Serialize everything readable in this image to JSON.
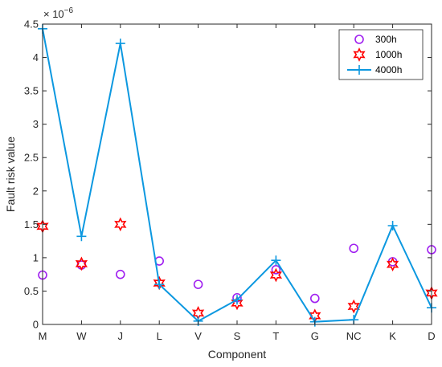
{
  "chart_data": {
    "type": "scatter",
    "xlabel": "Component",
    "ylabel": "Fault risk value",
    "y_exponent_label": "× 10",
    "y_exponent_power": "−6",
    "categories": [
      "M",
      "W",
      "J",
      "L",
      "V",
      "S",
      "T",
      "G",
      "NC",
      "K",
      "D"
    ],
    "ylim": [
      0,
      4.5
    ],
    "yticks": [
      "0",
      "0.5",
      "1",
      "1.5",
      "2",
      "2.5",
      "3",
      "3.5",
      "4",
      "4.5"
    ],
    "legend_position": "top-right",
    "series": [
      {
        "name": "300h",
        "marker": "circle",
        "line": false,
        "color": "#a020f0",
        "values": [
          0.74,
          0.89,
          0.75,
          0.95,
          0.6,
          0.4,
          0.82,
          0.39,
          1.14,
          0.94,
          1.12
        ]
      },
      {
        "name": "1000h",
        "marker": "hexagram",
        "line": false,
        "color": "#ff0000",
        "values": [
          1.47,
          0.91,
          1.5,
          0.62,
          0.17,
          0.32,
          0.74,
          0.13,
          0.27,
          0.9,
          0.47
        ]
      },
      {
        "name": "4000h",
        "marker": "plus",
        "line": true,
        "color": "#0c98e0",
        "values": [
          4.43,
          1.32,
          4.21,
          0.6,
          0.05,
          0.37,
          0.96,
          0.04,
          0.07,
          1.48,
          0.25
        ]
      }
    ]
  }
}
